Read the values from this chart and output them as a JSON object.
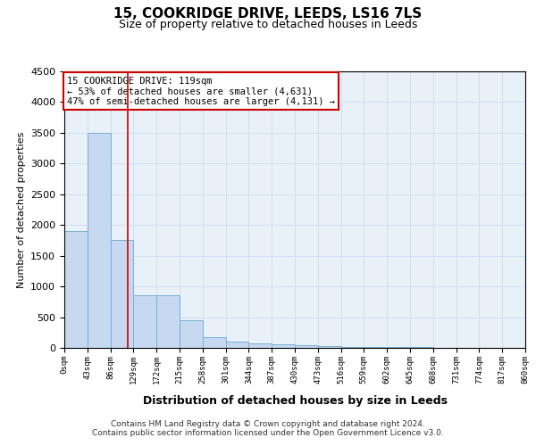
{
  "title": "15, COOKRIDGE DRIVE, LEEDS, LS16 7LS",
  "subtitle": "Size of property relative to detached houses in Leeds",
  "xlabel": "Distribution of detached houses by size in Leeds",
  "ylabel": "Number of detached properties",
  "bin_labels": [
    "0sqm",
    "43sqm",
    "86sqm",
    "129sqm",
    "172sqm",
    "215sqm",
    "258sqm",
    "301sqm",
    "344sqm",
    "387sqm",
    "430sqm",
    "473sqm",
    "516sqm",
    "559sqm",
    "602sqm",
    "645sqm",
    "688sqm",
    "731sqm",
    "774sqm",
    "817sqm",
    "860sqm"
  ],
  "bin_edges": [
    0,
    43,
    86,
    129,
    172,
    215,
    258,
    301,
    344,
    387,
    430,
    473,
    516,
    559,
    602,
    645,
    688,
    731,
    774,
    817,
    860
  ],
  "bar_heights": [
    1900,
    3500,
    1750,
    850,
    850,
    450,
    175,
    100,
    75,
    60,
    50,
    30,
    20,
    15,
    10,
    8,
    5,
    4,
    3,
    2
  ],
  "bar_color": "#c6d9f0",
  "bar_edge_color": "#7bafd4",
  "vline_x": 119,
  "vline_color": "#cc0000",
  "annotation_text": "15 COOKRIDGE DRIVE: 119sqm\n← 53% of detached houses are smaller (4,631)\n47% of semi-detached houses are larger (4,131) →",
  "annotation_box_color": "#cc0000",
  "annotation_bg": "white",
  "ylim": [
    0,
    4500
  ],
  "xlim": [
    0,
    860
  ],
  "grid_color": "#d0dff0",
  "bg_color": "#e8f0f8",
  "footer": "Contains HM Land Registry data © Crown copyright and database right 2024.\nContains public sector information licensed under the Open Government Licence v3.0."
}
